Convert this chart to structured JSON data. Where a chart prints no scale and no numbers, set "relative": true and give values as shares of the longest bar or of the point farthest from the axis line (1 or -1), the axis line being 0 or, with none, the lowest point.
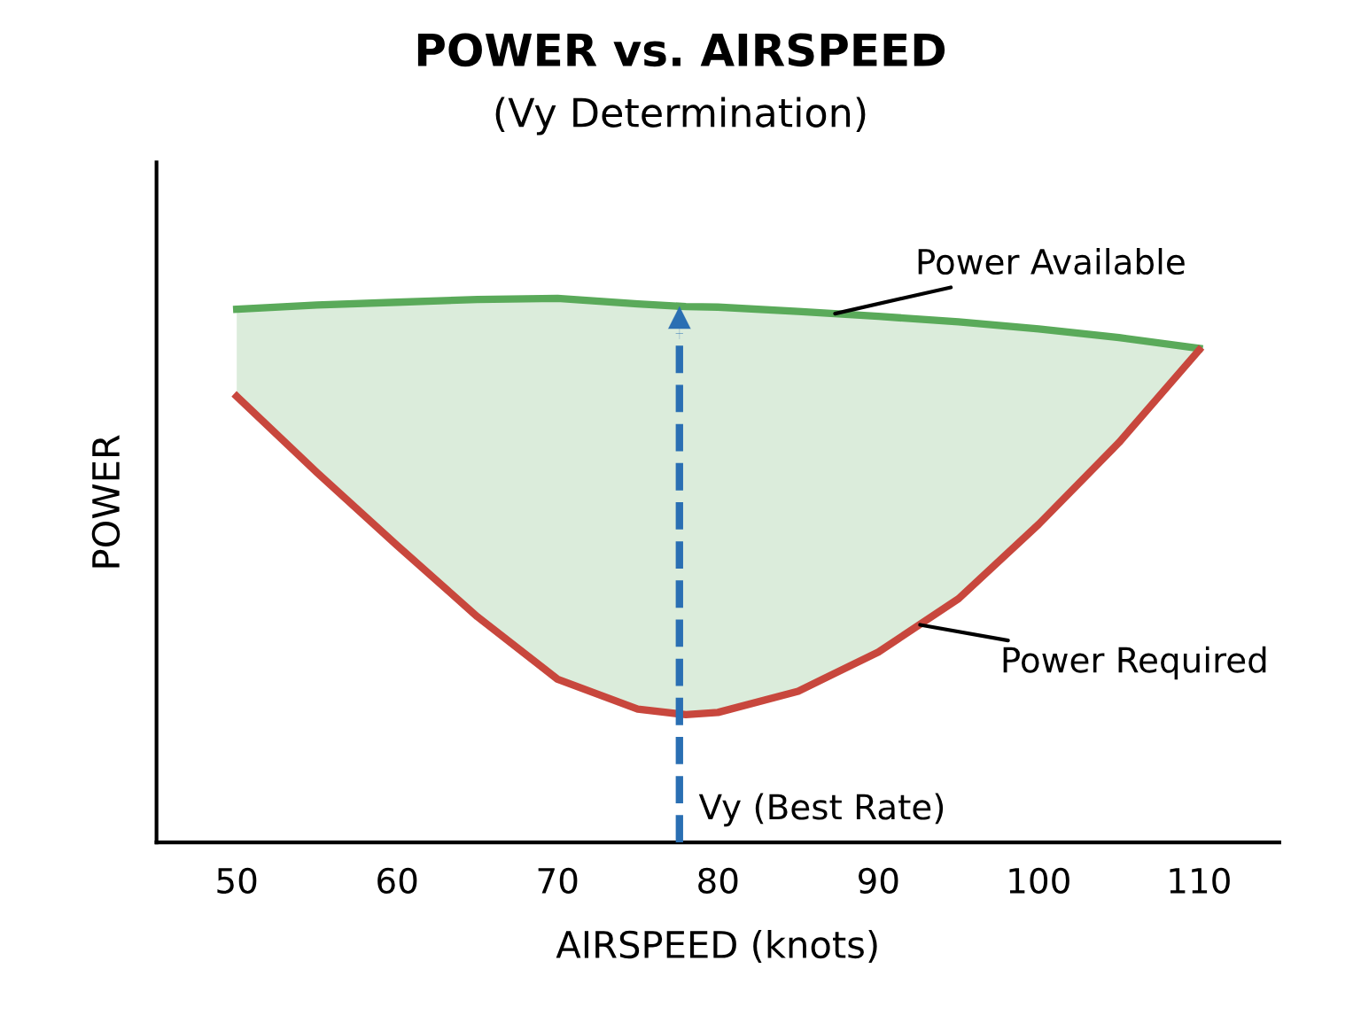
{
  "chart_data": {
    "type": "line",
    "title": "POWER vs. AIRSPEED",
    "subtitle": "(Vy Determination)",
    "xlabel": "AIRSPEED (knots)",
    "ylabel": "POWER",
    "relative": true,
    "xlim": [
      45,
      115
    ],
    "xticks": [
      50,
      60,
      70,
      80,
      90,
      100,
      110
    ],
    "grid": false,
    "legend": false,
    "marker": "none",
    "line_style": "solid",
    "series": [
      {
        "color": "#5aaa5a",
        "x": [
          50,
          55,
          60,
          65,
          70,
          75,
          78,
          80,
          85,
          90,
          95,
          100,
          105,
          110
        ],
        "values": [
          0.98,
          0.988,
          0.993,
          0.998,
          1.0,
          0.99,
          0.985,
          0.984,
          0.976,
          0.967,
          0.957,
          0.944,
          0.928,
          0.908
        ],
        "upper": [
          0.98,
          0.988,
          0.993,
          0.998,
          1.0,
          0.99,
          0.985,
          0.984,
          0.976,
          0.967,
          0.957,
          0.944,
          0.928,
          0.908
        ],
        "lower": [
          0.82,
          0.68,
          0.546,
          0.415,
          0.3,
          0.245,
          0.235,
          0.239,
          0.278,
          0.35,
          0.448,
          0.585,
          0.735,
          0.905
        ]
      },
      {
        "color": "#c8473d",
        "x": [
          50,
          55,
          60,
          65,
          70,
          75,
          78,
          80,
          85,
          90,
          95,
          100,
          105,
          110
        ],
        "values": [
          0.82,
          0.68,
          0.546,
          0.415,
          0.3,
          0.245,
          0.235,
          0.239,
          0.278,
          0.35,
          0.448,
          0.585,
          0.735,
          0.905
        ]
      }
    ],
    "ref_lines": [
      {
        "axis": "x",
        "value": 77.6,
        "label": "Vy (Best Rate)",
        "color": "#2a6fb3",
        "line_style": "dashed"
      }
    ],
    "annotations": [
      {
        "text": "Power Available",
        "x": 87.3,
        "y": 0.972
      },
      {
        "text": "Power Required",
        "x": 92.6,
        "y": 0.4
      }
    ]
  }
}
